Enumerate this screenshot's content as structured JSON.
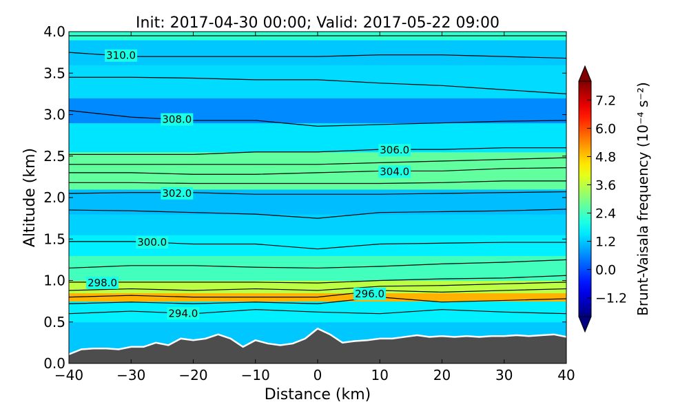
{
  "chart_data": {
    "type": "heatmap",
    "title": "Init: 2017-04-30 00:00; Valid: 2017-05-22 09:00",
    "xlabel": "Distance (km)",
    "ylabel": "Altitude (km)",
    "xlim": [
      -40,
      40
    ],
    "ylim": [
      0.0,
      4.0
    ],
    "xticks": [
      "−40",
      "−30",
      "−20",
      "−10",
      "0",
      "10",
      "20",
      "30",
      "40"
    ],
    "yticks": [
      "0.0",
      "0.5",
      "1.0",
      "1.5",
      "2.0",
      "2.5",
      "3.0",
      "3.5",
      "4.0"
    ],
    "xtick_values": [
      -40,
      -30,
      -20,
      -10,
      0,
      10,
      20,
      30,
      40
    ],
    "ytick_values": [
      0.0,
      0.5,
      1.0,
      1.5,
      2.0,
      2.5,
      3.0,
      3.5,
      4.0
    ],
    "colorbar": {
      "label": "Brunt-Vaisala frequency (10⁻⁴ s⁻²)",
      "ticks": [
        "−1.2",
        "0.0",
        "1.2",
        "2.4",
        "3.6",
        "4.8",
        "6.0",
        "7.2"
      ],
      "tick_values": [
        -1.2,
        0.0,
        1.2,
        2.4,
        3.6,
        4.8,
        6.0,
        7.2
      ],
      "vmin": -2.0,
      "vmax": 8.0,
      "colormap": "jet",
      "extend": "both"
    },
    "field_bands": [
      {
        "z": [
          0.5,
          0.75
        ],
        "n": 1.6
      },
      {
        "z": [
          0.75,
          0.85
        ],
        "n": 5.0
      },
      {
        "z": [
          0.85,
          1.0
        ],
        "n": 3.6
      },
      {
        "z": [
          1.0,
          1.3
        ],
        "n": 2.4
      },
      {
        "z": [
          1.3,
          1.55
        ],
        "n": 1.6
      },
      {
        "z": [
          1.55,
          1.8
        ],
        "n": 1.3
      },
      {
        "z": [
          1.8,
          2.1
        ],
        "n": 1.1
      },
      {
        "z": [
          2.1,
          2.55
        ],
        "n": 2.7
      },
      {
        "z": [
          2.55,
          2.9
        ],
        "n": 1.5
      },
      {
        "z": [
          2.9,
          3.2
        ],
        "n": 0.6
      },
      {
        "z": [
          3.2,
          3.6
        ],
        "n": 1.4
      },
      {
        "z": [
          3.6,
          3.9
        ],
        "n": 1.2
      },
      {
        "z": [
          3.9,
          4.0
        ],
        "n": 2.2
      }
    ],
    "contours": [
      {
        "label": "294.0",
        "label_x": -24,
        "z": [
          0.6,
          0.63,
          0.6,
          0.65,
          0.62,
          0.6,
          0.65,
          0.62,
          0.6
        ]
      },
      {
        "label": "",
        "z": [
          0.72,
          0.74,
          0.72,
          0.74,
          0.72,
          0.8,
          0.74,
          0.76,
          0.78
        ]
      },
      {
        "label": "296.0",
        "label_x": 6,
        "z": [
          0.8,
          0.82,
          0.8,
          0.8,
          0.8,
          0.88,
          0.86,
          0.88,
          0.9
        ]
      },
      {
        "label": "",
        "z": [
          0.88,
          0.9,
          0.88,
          0.9,
          0.88,
          0.93,
          0.94,
          0.96,
          0.98
        ]
      },
      {
        "label": "298.0",
        "label_x": -37,
        "z": [
          0.98,
          0.98,
          0.98,
          0.98,
          0.97,
          1.0,
          1.02,
          1.03,
          1.06
        ]
      },
      {
        "label": "",
        "z": [
          1.15,
          1.18,
          1.18,
          1.16,
          1.15,
          1.17,
          1.2,
          1.22,
          1.25
        ]
      },
      {
        "label": "300.0",
        "label_x": -29,
        "z": [
          1.47,
          1.47,
          1.44,
          1.44,
          1.38,
          1.44,
          1.45,
          1.46,
          1.46
        ]
      },
      {
        "label": "",
        "z": [
          1.85,
          1.84,
          1.82,
          1.8,
          1.75,
          1.82,
          1.83,
          1.84,
          1.86
        ]
      },
      {
        "label": "302.0",
        "label_x": -25,
        "z": [
          2.05,
          2.06,
          2.06,
          2.04,
          2.04,
          2.04,
          2.05,
          2.06,
          2.07
        ]
      },
      {
        "label": "",
        "z": [
          2.18,
          2.18,
          2.17,
          2.17,
          2.17,
          2.17,
          2.18,
          2.2,
          2.2
        ]
      },
      {
        "label": "304.0",
        "label_x": 10,
        "z": [
          2.3,
          2.3,
          2.28,
          2.28,
          2.3,
          2.32,
          2.32,
          2.35,
          2.36
        ]
      },
      {
        "label": "",
        "z": [
          2.4,
          2.4,
          2.4,
          2.4,
          2.4,
          2.42,
          2.44,
          2.46,
          2.48
        ]
      },
      {
        "label": "306.0",
        "label_x": 10,
        "z": [
          2.52,
          2.52,
          2.52,
          2.55,
          2.55,
          2.58,
          2.58,
          2.6,
          2.6
        ]
      },
      {
        "label": "308.0",
        "label_x": -25,
        "z": [
          3.05,
          2.97,
          2.93,
          2.93,
          2.86,
          2.88,
          2.9,
          2.92,
          2.93
        ]
      },
      {
        "label": "",
        "z": [
          3.45,
          3.45,
          3.44,
          3.42,
          3.42,
          3.38,
          3.35,
          3.3,
          3.25
        ]
      },
      {
        "label": "310.0",
        "label_x": -34,
        "z": [
          3.75,
          3.7,
          3.7,
          3.7,
          3.7,
          3.72,
          3.72,
          3.7,
          3.68
        ]
      },
      {
        "label": "",
        "z": [
          3.95,
          3.95,
          3.95,
          3.95,
          3.95,
          3.95,
          3.95,
          3.95,
          3.95
        ]
      }
    ],
    "terrain": {
      "x": [
        -40,
        -38,
        -36,
        -34,
        -32,
        -30,
        -28,
        -26,
        -24,
        -22,
        -20,
        -18,
        -16,
        -14,
        -12,
        -10,
        -8,
        -6,
        -4,
        -2,
        0,
        2,
        4,
        6,
        8,
        10,
        12,
        14,
        16,
        18,
        20,
        22,
        24,
        26,
        28,
        30,
        32,
        34,
        36,
        38,
        40
      ],
      "z": [
        0.11,
        0.17,
        0.18,
        0.18,
        0.17,
        0.2,
        0.2,
        0.25,
        0.22,
        0.3,
        0.28,
        0.3,
        0.35,
        0.3,
        0.2,
        0.28,
        0.24,
        0.22,
        0.24,
        0.3,
        0.42,
        0.35,
        0.25,
        0.27,
        0.28,
        0.3,
        0.3,
        0.32,
        0.34,
        0.32,
        0.33,
        0.32,
        0.33,
        0.32,
        0.33,
        0.33,
        0.34,
        0.33,
        0.34,
        0.35,
        0.32
      ]
    }
  }
}
